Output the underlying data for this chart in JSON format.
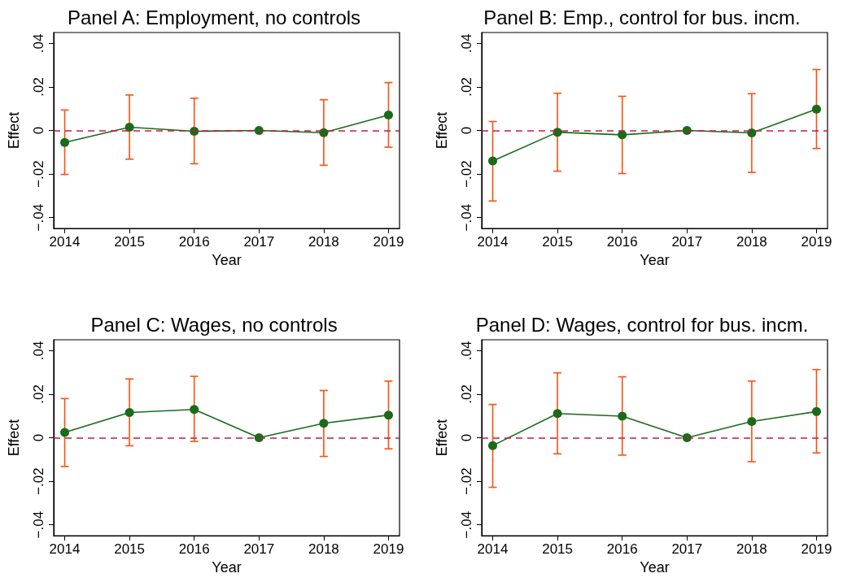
{
  "chart_data": [
    {
      "type": "line",
      "title": "Panel A: Employment, no controls",
      "xlabel": "Year",
      "ylabel": "Effect",
      "x": [
        2014,
        2015,
        2016,
        2017,
        2018,
        2019
      ],
      "xlim": [
        2013.83,
        2019.17
      ],
      "xticks": [
        2014,
        2015,
        2016,
        2017,
        2018,
        2019
      ],
      "ylim": [
        -0.045,
        0.045
      ],
      "yticks": [
        {
          "value": -0.04,
          "label": "−.04"
        },
        {
          "value": -0.02,
          "label": "−.02"
        },
        {
          "value": 0,
          "label": "0"
        },
        {
          "value": 0.02,
          "label": ".02"
        },
        {
          "value": 0.04,
          "label": ".04"
        }
      ],
      "grid": false,
      "marker": "circle",
      "line_style": "solid",
      "series": [
        {
          "color": "#1a6b1a",
          "values": [
            -0.0055,
            0.0015,
            -0.0004,
            0,
            -0.001,
            0.0071
          ],
          "errors": [
            [
              -0.0202,
              0.0094
            ],
            [
              -0.0132,
              0.0163
            ],
            [
              -0.0153,
              0.0148
            ],
            null,
            [
              -0.016,
              0.0141
            ],
            [
              -0.0077,
              0.022
            ]
          ]
        }
      ],
      "ref_lines": [
        {
          "axis": "y",
          "value": 0,
          "color": "#c8184a",
          "line_style": "dashed"
        }
      ]
    },
    {
      "type": "line",
      "title": "Panel B: Emp., control for bus. incm.",
      "xlabel": "Year",
      "ylabel": "Effect",
      "x": [
        2014,
        2015,
        2016,
        2017,
        2018,
        2019
      ],
      "xlim": [
        2013.83,
        2019.17
      ],
      "xticks": [
        2014,
        2015,
        2016,
        2017,
        2018,
        2019
      ],
      "ylim": [
        -0.045,
        0.045
      ],
      "yticks": [
        {
          "value": -0.04,
          "label": "−.04"
        },
        {
          "value": -0.02,
          "label": "−.02"
        },
        {
          "value": 0,
          "label": "0"
        },
        {
          "value": 0.02,
          "label": ".02"
        },
        {
          "value": 0.04,
          "label": ".04"
        }
      ],
      "grid": false,
      "marker": "circle",
      "line_style": "solid",
      "series": [
        {
          "color": "#1a6b1a",
          "values": [
            -0.014,
            -0.0008,
            -0.002,
            0,
            -0.0011,
            0.0098
          ],
          "errors": [
            [
              -0.0324,
              0.0041
            ],
            [
              -0.0187,
              0.0171
            ],
            [
              -0.0198,
              0.0157
            ],
            null,
            [
              -0.0193,
              0.0169
            ],
            [
              -0.0083,
              0.028
            ]
          ]
        }
      ],
      "ref_lines": [
        {
          "axis": "y",
          "value": 0,
          "color": "#c8184a",
          "line_style": "dashed"
        }
      ]
    },
    {
      "type": "line",
      "title": "Panel C: Wages, no controls",
      "xlabel": "Year",
      "ylabel": "Effect",
      "x": [
        2014,
        2015,
        2016,
        2017,
        2018,
        2019
      ],
      "xlim": [
        2013.83,
        2019.17
      ],
      "xticks": [
        2014,
        2015,
        2016,
        2017,
        2018,
        2019
      ],
      "ylim": [
        -0.045,
        0.045
      ],
      "yticks": [
        {
          "value": -0.04,
          "label": "−.04"
        },
        {
          "value": -0.02,
          "label": "−.02"
        },
        {
          "value": 0,
          "label": "0"
        },
        {
          "value": 0.02,
          "label": ".02"
        },
        {
          "value": 0.04,
          "label": ".04"
        }
      ],
      "grid": false,
      "marker": "circle",
      "line_style": "solid",
      "series": [
        {
          "color": "#1a6b1a",
          "values": [
            0.0024,
            0.0116,
            0.013,
            0,
            0.0066,
            0.0104
          ],
          "errors": [
            [
              -0.0132,
              0.018
            ],
            [
              -0.0037,
              0.027
            ],
            [
              -0.0017,
              0.0282
            ],
            null,
            [
              -0.0086,
              0.0217
            ],
            [
              -0.0051,
              0.026
            ]
          ]
        }
      ],
      "ref_lines": [
        {
          "axis": "y",
          "value": 0,
          "color": "#c8184a",
          "line_style": "dashed"
        }
      ]
    },
    {
      "type": "line",
      "title": "Panel D: Wages, control for bus. incm.",
      "xlabel": "Year",
      "ylabel": "Effect",
      "x": [
        2014,
        2015,
        2016,
        2017,
        2018,
        2019
      ],
      "xlim": [
        2013.83,
        2019.17
      ],
      "xticks": [
        2014,
        2015,
        2016,
        2017,
        2018,
        2019
      ],
      "ylim": [
        -0.045,
        0.045
      ],
      "yticks": [
        {
          "value": -0.04,
          "label": "−.04"
        },
        {
          "value": -0.02,
          "label": "−.02"
        },
        {
          "value": 0,
          "label": "0"
        },
        {
          "value": 0.02,
          "label": ".02"
        },
        {
          "value": 0.04,
          "label": ".04"
        }
      ],
      "grid": false,
      "marker": "circle",
      "line_style": "solid",
      "series": [
        {
          "color": "#1a6b1a",
          "values": [
            -0.0036,
            0.0111,
            0.0099,
            0,
            0.0075,
            0.012
          ],
          "errors": [
            [
              -0.0228,
              0.0153
            ],
            [
              -0.0074,
              0.0298
            ],
            [
              -0.008,
              0.028
            ],
            null,
            [
              -0.011,
              0.026
            ],
            [
              -0.007,
              0.0313
            ]
          ]
        }
      ],
      "ref_lines": [
        {
          "axis": "y",
          "value": 0,
          "color": "#c8184a",
          "line_style": "dashed"
        }
      ]
    }
  ]
}
